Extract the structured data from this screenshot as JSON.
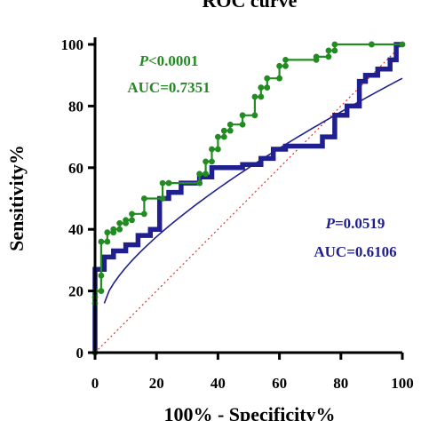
{
  "chart_data": {
    "type": "line",
    "title": "ROC curve",
    "xlabel": "100% - Specificity%",
    "ylabel": "Sensitivity%",
    "xlim": [
      0,
      100
    ],
    "ylim": [
      0,
      100
    ],
    "xticks": [
      0,
      20,
      40,
      60,
      80,
      100
    ],
    "yticks": [
      0,
      20,
      40,
      60,
      80,
      100
    ],
    "grid": false,
    "annotations": [
      {
        "p_prefix": "P",
        "p_value": "<0.0001",
        "auc": "AUC=0.7351",
        "color": "#228B22"
      },
      {
        "p_prefix": "P",
        "p_value": "=0.0519",
        "auc": "AUC=0.6106",
        "color": "#1F1F8F"
      }
    ],
    "series": [
      {
        "color": "#228B22",
        "style": "step-with-circles",
        "x": [
          0,
          0,
          0,
          0,
          2,
          2,
          2,
          4,
          4,
          6,
          6,
          8,
          8,
          10,
          10,
          12,
          12,
          16,
          16,
          22,
          22,
          24,
          24,
          34,
          34,
          36,
          36,
          38,
          38,
          40,
          40,
          42,
          42,
          44,
          44,
          48,
          48,
          52,
          52,
          54,
          54,
          56,
          56,
          60,
          60,
          62,
          62,
          72,
          72,
          76,
          76,
          78,
          78,
          90,
          90,
          100
        ],
        "y": [
          0,
          16,
          18,
          20,
          20,
          25,
          36,
          36,
          39,
          39,
          40,
          40,
          42,
          42,
          43,
          43,
          45,
          45,
          50,
          50,
          55,
          55,
          55,
          55,
          58,
          58,
          62,
          62,
          66,
          66,
          70,
          70,
          72,
          72,
          74,
          74,
          77,
          77,
          83,
          83,
          86,
          86,
          89,
          89,
          93,
          93,
          95,
          95,
          96,
          96,
          98,
          98,
          100,
          100,
          100,
          100
        ]
      },
      {
        "color": "#1F1F8F",
        "style": "step-thick",
        "x": [
          0,
          0,
          3,
          3,
          6,
          6,
          10,
          10,
          14,
          14,
          18,
          18,
          21,
          21,
          24,
          24,
          28,
          28,
          34,
          34,
          38,
          38,
          48,
          48,
          54,
          54,
          58,
          58,
          62,
          62,
          74,
          74,
          78,
          78,
          82,
          82,
          86,
          86,
          88,
          88,
          92,
          92,
          96,
          96,
          98,
          98,
          100
        ],
        "y": [
          0,
          27,
          27,
          31,
          31,
          33,
          33,
          35,
          35,
          38,
          38,
          40,
          40,
          50,
          50,
          52,
          52,
          55,
          55,
          57,
          57,
          60,
          60,
          61,
          61,
          63,
          63,
          66,
          66,
          67,
          67,
          70,
          70,
          77,
          77,
          80,
          80,
          88,
          88,
          90,
          90,
          92,
          92,
          95,
          95,
          100,
          100
        ]
      }
    ],
    "reference_line": {
      "x": [
        0,
        100
      ],
      "y": [
        0,
        100
      ],
      "color": "#E03030",
      "style": "dotted"
    }
  }
}
